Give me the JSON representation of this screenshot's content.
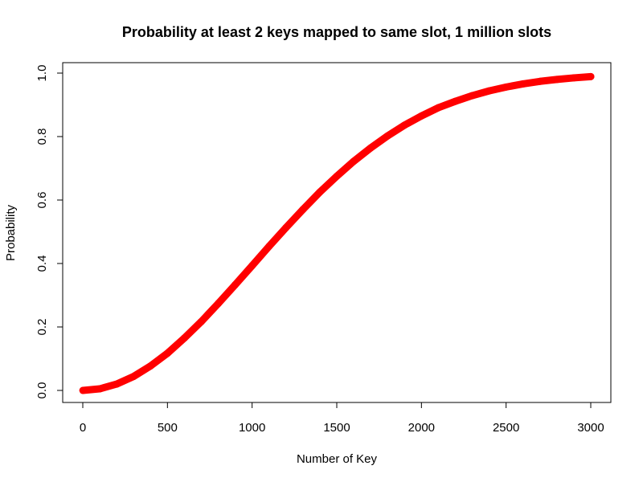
{
  "chart_data": {
    "type": "line",
    "title": "Probability at least 2 keys mapped to same slot, 1 million slots",
    "xlabel": "Number of Key",
    "ylabel": "Probability",
    "xlim": [
      0,
      3000
    ],
    "ylim": [
      0,
      1
    ],
    "x_ticks": [
      "0",
      "500",
      "1000",
      "1500",
      "2000",
      "2500",
      "3000"
    ],
    "y_ticks": [
      "0.0",
      "0.2",
      "0.4",
      "0.6",
      "0.8",
      "1.0"
    ],
    "grid": false,
    "legend": "none",
    "series": [
      {
        "color": "#ff0000",
        "x": [
          1,
          100,
          200,
          300,
          400,
          500,
          600,
          700,
          800,
          900,
          1000,
          1100,
          1200,
          1300,
          1400,
          1500,
          1600,
          1700,
          1800,
          1900,
          2000,
          2100,
          2200,
          2300,
          2400,
          2500,
          2600,
          2700,
          2800,
          2900,
          3000
        ],
        "y": [
          0,
          0.005,
          0.02,
          0.044,
          0.077,
          0.117,
          0.165,
          0.217,
          0.274,
          0.333,
          0.393,
          0.454,
          0.513,
          0.57,
          0.625,
          0.675,
          0.722,
          0.764,
          0.802,
          0.836,
          0.865,
          0.891,
          0.911,
          0.929,
          0.944,
          0.956,
          0.966,
          0.974,
          0.98,
          0.985,
          0.989
        ]
      }
    ]
  }
}
